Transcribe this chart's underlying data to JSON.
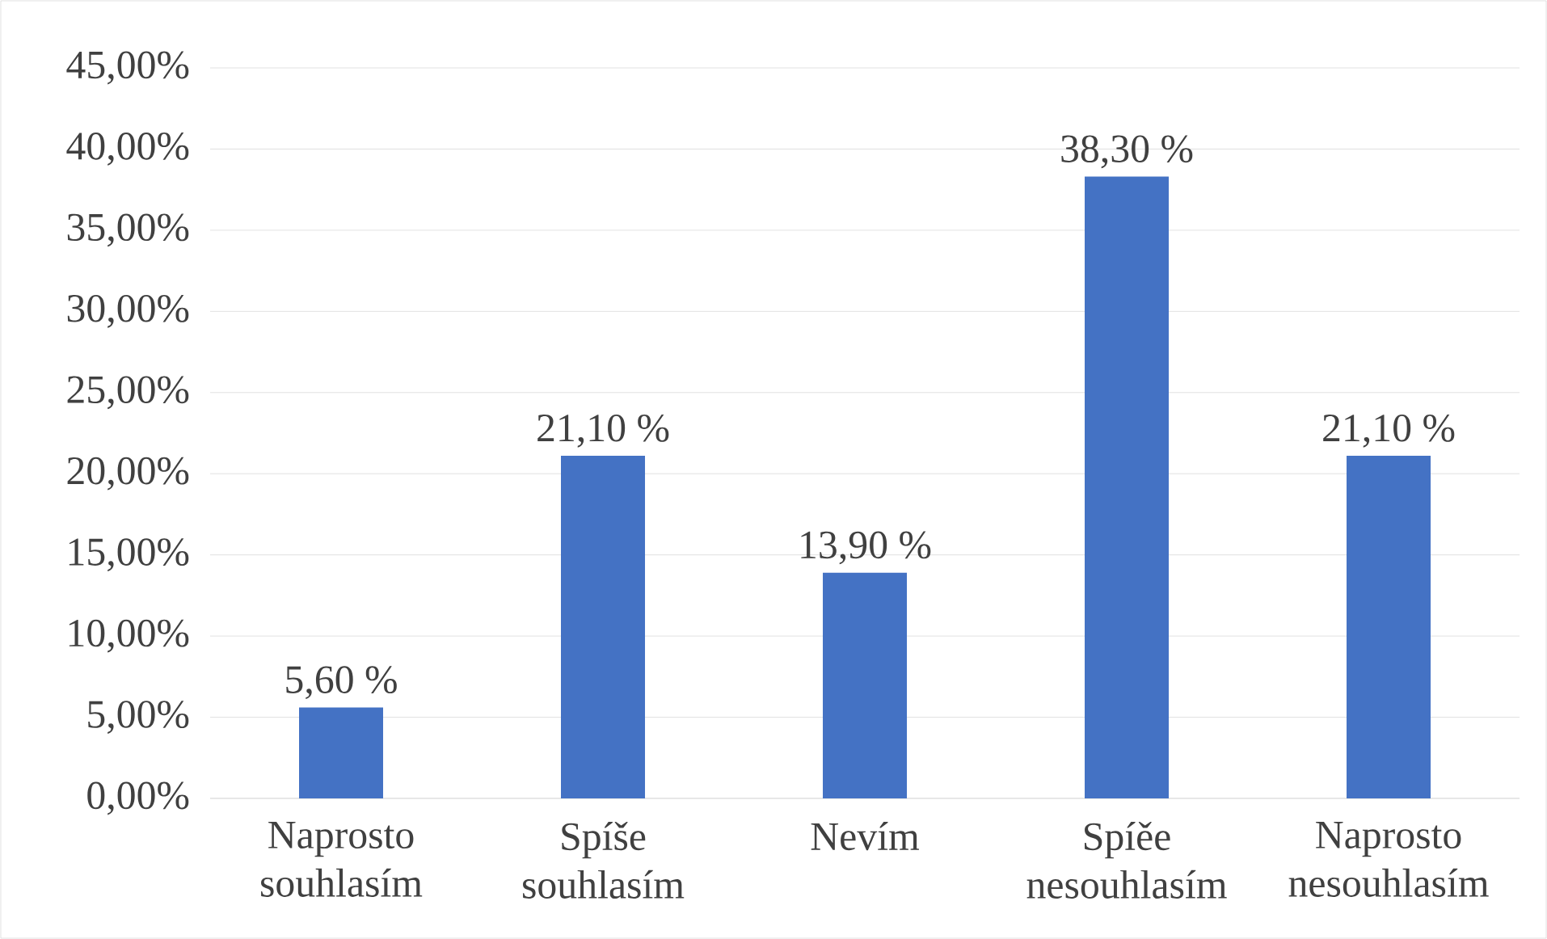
{
  "chart_data": {
    "type": "bar",
    "categories": [
      "Naprosto souhlasím",
      "Spíše souhlasím",
      "Nevím",
      "Spíěe nesouhlasím",
      "Naprosto nesouhlasím"
    ],
    "values": [
      5.6,
      21.1,
      13.9,
      38.3,
      21.1
    ],
    "value_labels": [
      "5,60 %",
      "21,10 %",
      "13,90 %",
      "38,30 %",
      "21,10 %"
    ],
    "color": "#4472c4",
    "ylim": [
      0,
      45
    ],
    "yticks": [
      {
        "value": 0,
        "label": "0,00%"
      },
      {
        "value": 5,
        "label": "5,00%"
      },
      {
        "value": 10,
        "label": "10,00%"
      },
      {
        "value": 15,
        "label": "15,00%"
      },
      {
        "value": 20,
        "label": "20,00%"
      },
      {
        "value": 25,
        "label": "25,00%"
      },
      {
        "value": 30,
        "label": "30,00%"
      },
      {
        "value": 35,
        "label": "35,00%"
      },
      {
        "value": 40,
        "label": "40,00%"
      },
      {
        "value": 45,
        "label": "45,00%"
      }
    ],
    "grid": "y"
  }
}
